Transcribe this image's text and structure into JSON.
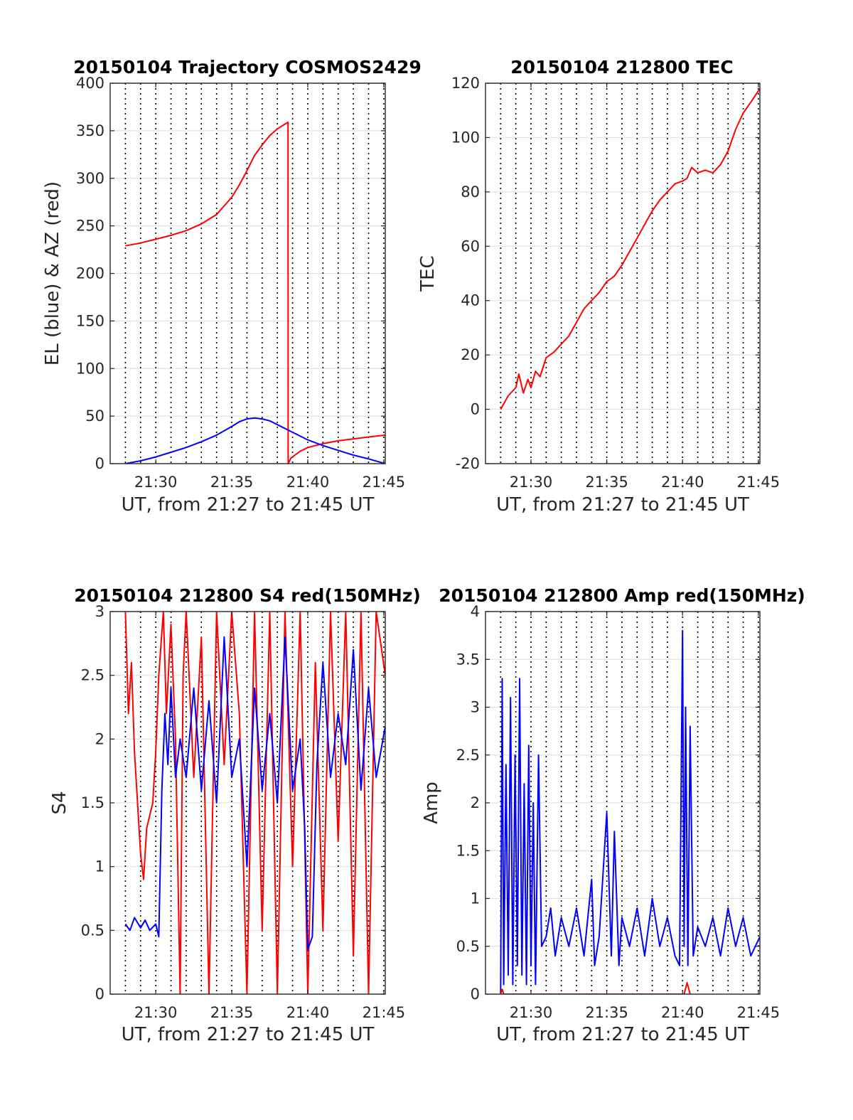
{
  "chart_data": [
    {
      "type": "line",
      "title": "20150104 Trajectory COSMOS2429",
      "xlabel": "UT, from 21:27 to 21:45 UT",
      "ylabel": "EL (blue) & AZ (red)",
      "xlim_minutes": [
        27,
        45.1
      ],
      "ylim": [
        0,
        400
      ],
      "x_ticks": [
        "21:30",
        "21:35",
        "21:40",
        "21:45"
      ],
      "y_ticks": [
        "0",
        "50",
        "100",
        "150",
        "200",
        "250",
        "300",
        "350",
        "400"
      ],
      "grid": true,
      "series": [
        {
          "color": "#ff0000",
          "x_minutes": [
            28,
            29,
            30,
            31,
            32,
            33,
            34,
            35,
            35.5,
            36,
            36.5,
            37,
            37.5,
            38,
            38.5,
            38.7,
            38.71,
            38.9,
            39.5,
            40,
            41,
            42,
            43,
            44,
            45.1
          ],
          "y": [
            229,
            232,
            236,
            240,
            245,
            252,
            262,
            280,
            293,
            308,
            324,
            335,
            345,
            352,
            357,
            359,
            0,
            6,
            13,
            17,
            21,
            24,
            26,
            28,
            30
          ]
        },
        {
          "color": "#0000ff",
          "x_minutes": [
            28,
            29,
            30,
            31,
            32,
            33,
            34,
            35,
            35.5,
            36,
            36.5,
            37,
            37.5,
            38,
            39,
            40,
            41,
            42,
            43,
            44,
            45.1
          ],
          "y": [
            0,
            3,
            7,
            12,
            17,
            23,
            30,
            39,
            44,
            47,
            48,
            47,
            45,
            41,
            33,
            25,
            19,
            14,
            9,
            5,
            0
          ]
        }
      ]
    },
    {
      "type": "line",
      "title": "20150104 212800 TEC",
      "xlabel": "UT, from 21:27 to 21:45 UT",
      "ylabel": "TEC",
      "xlim_minutes": [
        27,
        45.1
      ],
      "ylim": [
        -20,
        120
      ],
      "x_ticks": [
        "21:30",
        "21:35",
        "21:40",
        "21:45"
      ],
      "y_ticks": [
        "-20",
        "0",
        "20",
        "40",
        "60",
        "80",
        "100",
        "120"
      ],
      "grid": true,
      "series": [
        {
          "color": "#ff0000",
          "x_minutes": [
            28,
            28.5,
            29,
            29.2,
            29.5,
            29.8,
            30,
            30.3,
            30.6,
            31,
            31.5,
            32,
            32.5,
            33,
            33.5,
            34,
            34.5,
            35,
            35.5,
            36,
            36.5,
            37,
            37.5,
            38,
            38.5,
            39,
            39.5,
            40,
            40.3,
            40.6,
            41,
            41.5,
            42,
            42.5,
            43,
            43.5,
            44,
            44.5,
            45.1
          ],
          "y": [
            0,
            5,
            8,
            13,
            6,
            11,
            8,
            14,
            12,
            19,
            21,
            24,
            27,
            32,
            37,
            40,
            43,
            47,
            49,
            53,
            58,
            63,
            68,
            73,
            77,
            80,
            83,
            84,
            85,
            89,
            87,
            88,
            87,
            90,
            95,
            103,
            109,
            113,
            118
          ]
        }
      ]
    },
    {
      "type": "line",
      "title": "20150104 212800 S4 red(150MHz)",
      "xlabel": "UT, from 21:27 to 21:45 UT",
      "ylabel": "S4",
      "xlim_minutes": [
        27,
        45.1
      ],
      "ylim": [
        0,
        3
      ],
      "x_ticks": [
        "21:30",
        "21:35",
        "21:40",
        "21:45"
      ],
      "y_ticks": [
        "0",
        "0.5",
        "1",
        "1.5",
        "2",
        "2.5",
        "3"
      ],
      "grid": true,
      "series": [
        {
          "color": "#ff0000",
          "x_minutes": [
            28,
            28.2,
            28.4,
            28.6,
            28.8,
            29,
            29.2,
            29.4,
            29.6,
            29.8,
            30,
            30.2,
            30.5,
            30.7,
            31,
            31.3,
            31.6,
            31.8,
            32,
            32.5,
            33,
            33.5,
            34,
            34.5,
            35,
            35.5,
            36,
            36.5,
            37,
            37.5,
            38,
            38.5,
            39,
            39.5,
            40,
            40.5,
            41,
            41.5,
            42,
            42.5,
            43,
            43.5,
            44,
            44.5,
            45.1
          ],
          "y": [
            3,
            2.2,
            2.6,
            1.9,
            1.5,
            1.1,
            0.9,
            1.3,
            1.4,
            1.5,
            1.9,
            2.5,
            3,
            2.2,
            2.9,
            2.0,
            0,
            2.5,
            3,
            1.7,
            2.8,
            0,
            3,
            1.8,
            3,
            2.2,
            0,
            3,
            0.5,
            3,
            0,
            3,
            1.0,
            3,
            0,
            2.6,
            0.5,
            3,
            1.2,
            3,
            0.3,
            3,
            0,
            3,
            2.5
          ]
        },
        {
          "color": "#0000ff",
          "x_minutes": [
            28,
            28.3,
            28.6,
            29,
            29.3,
            29.6,
            30,
            30.2,
            30.4,
            30.6,
            30.8,
            31,
            31.3,
            31.6,
            32,
            32.5,
            33,
            33.5,
            34,
            34.5,
            35,
            35.5,
            36,
            36.5,
            37,
            37.5,
            38,
            38.5,
            39,
            39.5,
            39.8,
            40,
            40.3,
            40.6,
            41,
            41.5,
            42,
            42.5,
            43,
            43.5,
            44,
            44.5,
            45.1
          ],
          "y": [
            0.55,
            0.5,
            0.6,
            0.52,
            0.58,
            0.5,
            0.55,
            0.45,
            1.6,
            2.2,
            1.8,
            2.4,
            1.7,
            2.0,
            1.7,
            2.4,
            1.6,
            2.3,
            1.5,
            2.8,
            1.7,
            2.0,
            1.0,
            2.4,
            1.6,
            2.2,
            1.5,
            2.8,
            1.6,
            2.0,
            1.3,
            0.35,
            0.45,
            1.8,
            2.6,
            1.7,
            2.2,
            1.8,
            2.7,
            1.6,
            2.4,
            1.7,
            2.1
          ]
        }
      ]
    },
    {
      "type": "line",
      "title": "20150104 212800 Amp red(150MHz)",
      "xlabel": "UT, from 21:27 to 21:45 UT",
      "ylabel": "Amp",
      "xlim_minutes": [
        27,
        45.1
      ],
      "ylim": [
        0,
        4
      ],
      "x_ticks": [
        "21:30",
        "21:35",
        "21:40",
        "21:45"
      ],
      "y_ticks": [
        "0",
        "0.5",
        "1",
        "1.5",
        "2",
        "2.5",
        "3",
        "3.5",
        "4"
      ],
      "grid": true,
      "series": [
        {
          "color": "#0000ff",
          "x_minutes": [
            28,
            28.1,
            28.2,
            28.35,
            28.5,
            28.65,
            28.8,
            28.95,
            29.1,
            29.25,
            29.4,
            29.55,
            29.7,
            29.85,
            30,
            30.15,
            30.3,
            30.5,
            30.7,
            31,
            31.3,
            31.6,
            32,
            32.5,
            33,
            33.5,
            34,
            34.2,
            34.5,
            35,
            35.3,
            35.5,
            35.8,
            36,
            36.5,
            37,
            37.5,
            38,
            38.5,
            39,
            39.5,
            39.8,
            40,
            40.1,
            40.2,
            40.35,
            40.5,
            40.7,
            41,
            41.5,
            42,
            42.5,
            43,
            43.5,
            44,
            44.5,
            45.1
          ],
          "y": [
            0,
            3.3,
            0.1,
            2.4,
            0.2,
            3.1,
            0.1,
            2.5,
            0.3,
            3.3,
            0.2,
            2.2,
            0.1,
            2.6,
            0.3,
            2.0,
            0.1,
            2.5,
            0.5,
            0.6,
            0.9,
            0.4,
            0.8,
            0.5,
            0.9,
            0.4,
            1.2,
            0.3,
            0.6,
            1.9,
            0.4,
            1.7,
            0.3,
            0.8,
            0.5,
            0.9,
            0.4,
            1.0,
            0.5,
            0.8,
            0.4,
            0.3,
            3.8,
            0.5,
            3.0,
            0.3,
            2.8,
            0.4,
            0.7,
            0.5,
            0.8,
            0.4,
            0.9,
            0.5,
            0.8,
            0.4,
            0.6
          ]
        },
        {
          "color": "#ff0000",
          "x_minutes": [
            28,
            28.1,
            28.2,
            40.1,
            40.3,
            40.5
          ],
          "y": [
            0,
            0.05,
            0,
            0,
            0.12,
            0
          ]
        }
      ]
    }
  ]
}
